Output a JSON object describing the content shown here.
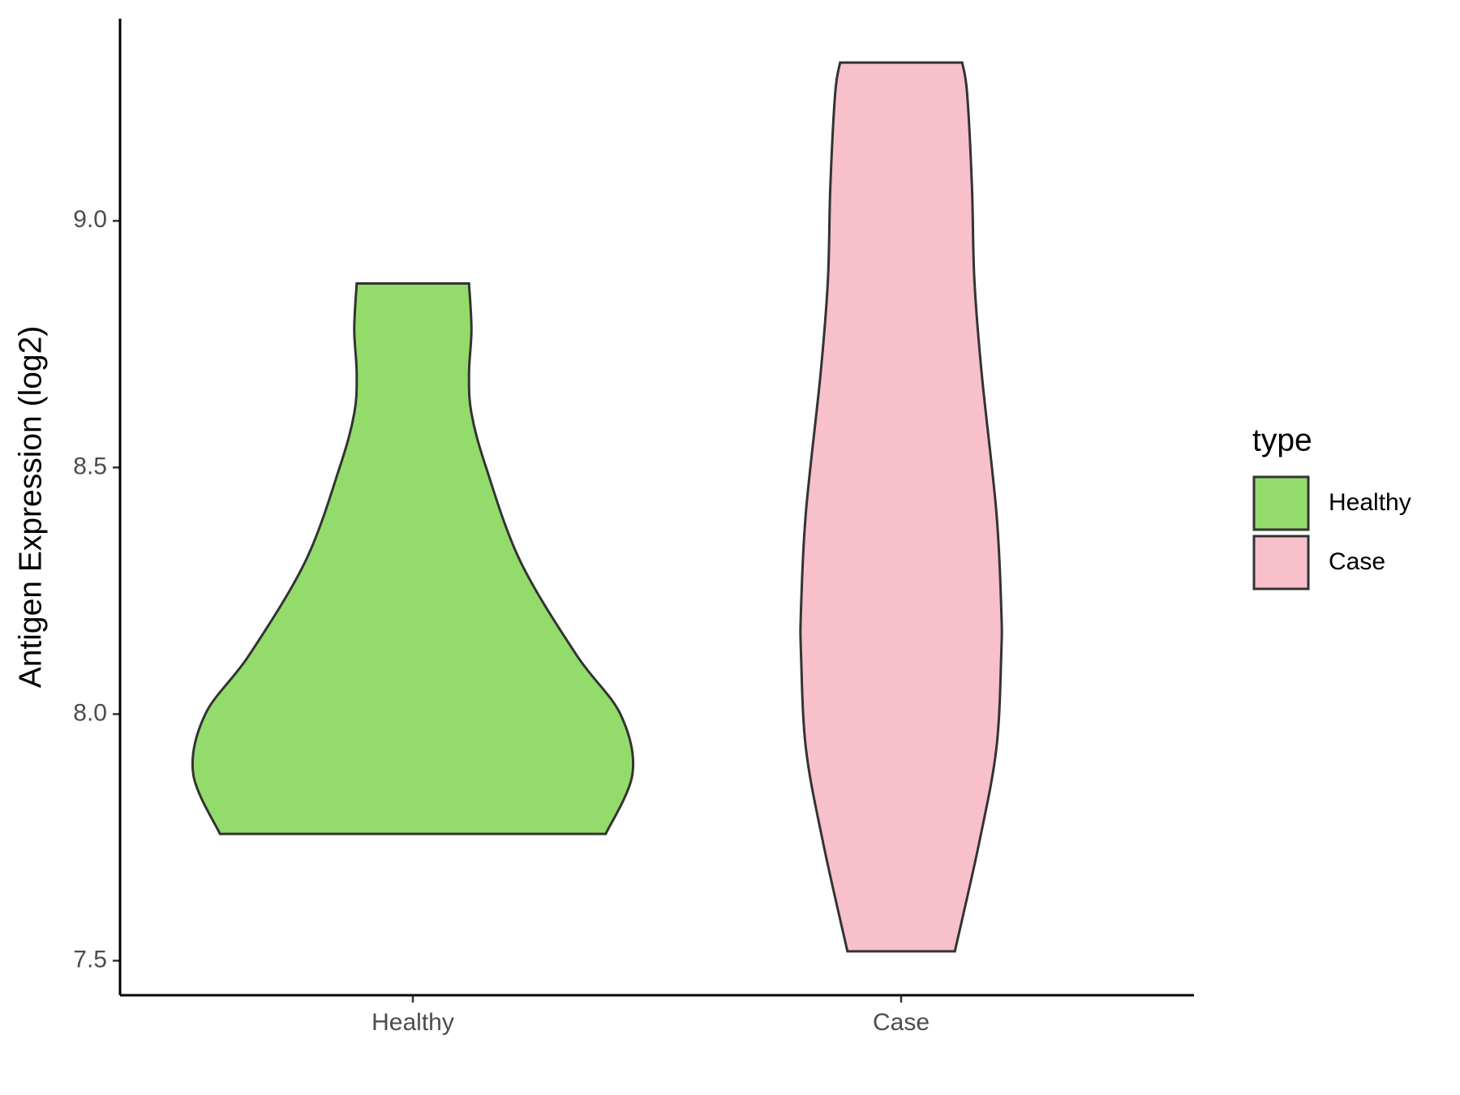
{
  "chart_data": {
    "type": "violin",
    "y_label": "Antigen Expression (log2)",
    "categories": [
      "Healthy",
      "Case"
    ],
    "legend_title": "type",
    "legend_position": "right",
    "ylim": [
      7.43,
      9.41
    ],
    "yticks": [
      {
        "value": 7.5,
        "label": "7.5"
      },
      {
        "value": 8.0,
        "label": "8.0"
      },
      {
        "value": 8.5,
        "label": "8.5"
      },
      {
        "value": 9.0,
        "label": "9.0"
      }
    ],
    "series": [
      {
        "name": "Healthy",
        "color": "#93dc6b",
        "y": [
          7.757,
          7.88,
          8.0,
          8.12,
          8.31,
          8.5,
          8.61,
          8.69,
          8.78,
          8.873
        ],
        "width": [
          0.79,
          0.9,
          0.85,
          0.67,
          0.44,
          0.3,
          0.24,
          0.23,
          0.24,
          0.23
        ]
      },
      {
        "name": "Case",
        "color": "#f7c0cb",
        "y": [
          7.519,
          7.74,
          7.93,
          8.12,
          8.215,
          8.41,
          8.69,
          8.88,
          9.07,
          9.26,
          9.321
        ],
        "width": [
          0.22,
          0.32,
          0.39,
          0.41,
          0.41,
          0.39,
          0.33,
          0.3,
          0.29,
          0.27,
          0.25
        ]
      }
    ]
  }
}
